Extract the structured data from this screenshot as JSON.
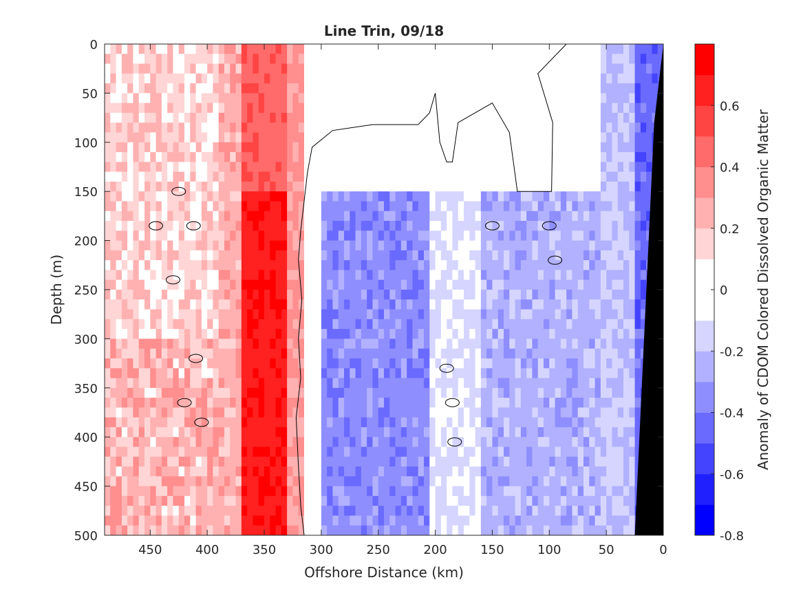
{
  "chart_data": {
    "type": "heatmap",
    "title": "Line Trin, 09/18",
    "xlabel": "Offshore Distance (km)",
    "ylabel": "Depth (m)",
    "colorbar_label": "Anomaly of CDOM Colored Dissolved Organic Matter",
    "xlim": [
      490,
      0
    ],
    "ylim": [
      0,
      500
    ],
    "x_reversed": true,
    "y_reversed": true,
    "x_ticks": [
      450,
      400,
      350,
      300,
      250,
      200,
      150,
      100,
      50,
      0
    ],
    "y_ticks": [
      0,
      50,
      100,
      150,
      200,
      250,
      300,
      350,
      400,
      450,
      500
    ],
    "colorbar_ticks": [
      0.6,
      0.4,
      0.2,
      0,
      -0.2,
      -0.4,
      -0.6,
      -0.8
    ],
    "color_levels": [
      -0.8,
      -0.7,
      -0.6,
      -0.5,
      -0.4,
      -0.3,
      -0.2,
      -0.1,
      0.1,
      0.2,
      0.3,
      0.4,
      0.5,
      0.6,
      0.7,
      0.8
    ],
    "level_colors": [
      "#0000ff",
      "#2020ff",
      "#4444ff",
      "#6a6aff",
      "#8e8eff",
      "#b1b1ff",
      "#d5d5ff",
      "#ffffff",
      "#ffd5d5",
      "#ffb1b1",
      "#ff8e8e",
      "#ff6a6a",
      "#ff4444",
      "#ff2020",
      "#ff0000"
    ],
    "bathymetry_color": "#000000",
    "zero_contour_color": "#000000",
    "bands": [
      {
        "x_from": 490,
        "x_to": 390,
        "anomaly_mean": 0.15,
        "note": "patchy light positive"
      },
      {
        "x_from": 390,
        "x_to": 370,
        "anomaly_mean": 0.25
      },
      {
        "x_from": 370,
        "x_to": 330,
        "anomaly_mean": 0.55,
        "note": "strongest positive core"
      },
      {
        "x_from": 330,
        "x_to": 315,
        "anomaly_mean": 0.3
      },
      {
        "x_from": 315,
        "x_to": 300,
        "anomaly_mean": 0.0
      },
      {
        "x_from": 300,
        "x_to": 205,
        "anomaly_mean": -0.35,
        "depth_from": 150
      },
      {
        "x_from": 205,
        "x_to": 160,
        "anomaly_mean": -0.1,
        "depth_from": 150
      },
      {
        "x_from": 160,
        "x_to": 55,
        "anomaly_mean": -0.25,
        "depth_from": 150
      },
      {
        "x_from": 55,
        "x_to": 25,
        "anomaly_mean": -0.2
      },
      {
        "x_from": 25,
        "x_to": 0,
        "anomaly_mean": -0.45,
        "note": "near shelf"
      }
    ]
  }
}
